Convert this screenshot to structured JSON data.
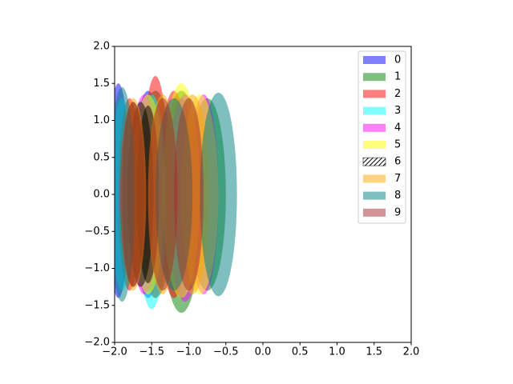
{
  "chart_data": {
    "type": "ellipse",
    "xlim": [
      -2,
      2
    ],
    "ylim": [
      -2,
      2
    ],
    "xticks": [
      {
        "value": -2,
        "label": "−2.0"
      },
      {
        "value": -1.5,
        "label": "−1.5"
      },
      {
        "value": -1,
        "label": "−1.0"
      },
      {
        "value": -0.5,
        "label": "−0.5"
      },
      {
        "value": 0,
        "label": "0.0"
      },
      {
        "value": 0.5,
        "label": "0.5"
      },
      {
        "value": 1,
        "label": "1.0"
      },
      {
        "value": 1.5,
        "label": "1.5"
      },
      {
        "value": 2,
        "label": "2.0"
      }
    ],
    "yticks": [
      {
        "value": -2,
        "label": "−2.0"
      },
      {
        "value": -1.5,
        "label": "−1.5"
      },
      {
        "value": -1,
        "label": "−1.0"
      },
      {
        "value": -0.5,
        "label": "−0.5"
      },
      {
        "value": 0,
        "label": "0.0"
      },
      {
        "value": 0.5,
        "label": "0.5"
      },
      {
        "value": 1,
        "label": "1.0"
      },
      {
        "value": 1.5,
        "label": "1.5"
      },
      {
        "value": 2,
        "label": "2.0"
      }
    ],
    "legend": "upper right",
    "alpha": 0.5,
    "series": [
      {
        "name": "0",
        "color": "blue",
        "x": [
          -1.95,
          -1.55,
          -1.1
        ],
        "y": [
          0.05,
          0,
          -0.05
        ],
        "width": [
          0.3,
          0.4,
          0.35
        ],
        "height": [
          2.9,
          2.8,
          2.7
        ]
      },
      {
        "name": "1",
        "color": "green",
        "x": [
          -1.45,
          -1.1,
          -0.75
        ],
        "y": [
          0,
          -0.1,
          0
        ],
        "width": [
          0.5,
          0.55,
          0.5
        ],
        "height": [
          2.8,
          3.0,
          2.6
        ]
      },
      {
        "name": "2",
        "color": "red",
        "x": [
          -1.45,
          -1.2,
          -1.8
        ],
        "y": [
          0.1,
          0,
          0
        ],
        "width": [
          0.35,
          0.4,
          0.3
        ],
        "height": [
          3.0,
          2.8,
          2.6
        ]
      },
      {
        "name": "3",
        "color": "cyan",
        "x": [
          -1.5,
          -1.9,
          -1.0
        ],
        "y": [
          -0.1,
          0,
          0
        ],
        "width": [
          0.4,
          0.3,
          0.4
        ],
        "height": [
          2.9,
          2.6,
          2.6
        ]
      },
      {
        "name": "4",
        "color": "magenta",
        "x": [
          -1.05,
          -1.6,
          -0.8
        ],
        "y": [
          -0.05,
          0,
          0
        ],
        "width": [
          0.45,
          0.4,
          0.4
        ],
        "height": [
          2.8,
          2.7,
          2.7
        ]
      },
      {
        "name": "5",
        "color": "yellow",
        "x": [
          -1.1,
          -1.55,
          -0.85
        ],
        "y": [
          0.05,
          0,
          0
        ],
        "width": [
          0.5,
          0.45,
          0.5
        ],
        "height": [
          2.9,
          2.7,
          2.7
        ]
      },
      {
        "name": "6",
        "color": "black",
        "hatch": "////",
        "x": [
          -1.65,
          -1.55,
          -1.75
        ],
        "y": [
          0,
          0,
          0
        ],
        "width": [
          0.35,
          0.3,
          0.3
        ],
        "height": [
          2.5,
          2.4,
          2.5
        ]
      },
      {
        "name": "7",
        "color": "orange",
        "x": [
          -1.35,
          -1.75,
          -0.95
        ],
        "y": [
          0,
          0,
          0
        ],
        "width": [
          0.4,
          0.35,
          0.45
        ],
        "height": [
          2.7,
          2.6,
          2.7
        ]
      },
      {
        "name": "8",
        "color": "teal",
        "x": [
          -0.6,
          -1.9,
          -1.2
        ],
        "y": [
          0,
          0,
          0
        ],
        "width": [
          0.5,
          0.35,
          0.5
        ],
        "height": [
          2.75,
          2.9,
          2.6
        ]
      },
      {
        "name": "9",
        "color": "brown",
        "x": [
          -1.75,
          -1.35,
          -1.0
        ],
        "y": [
          0,
          0,
          0
        ],
        "width": [
          0.35,
          0.4,
          0.4
        ],
        "height": [
          2.5,
          2.6,
          2.6
        ]
      }
    ]
  }
}
